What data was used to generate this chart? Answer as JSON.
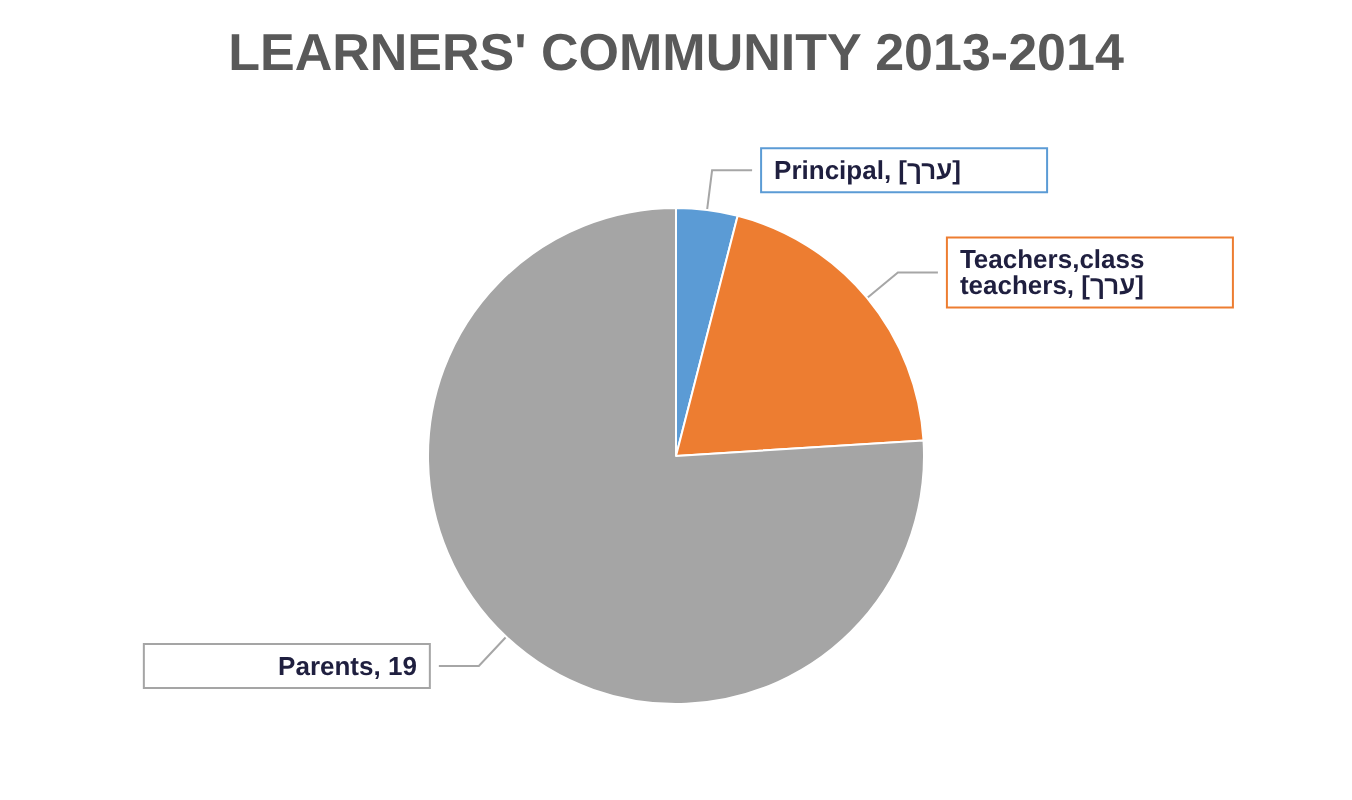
{
  "chart_data": {
    "type": "pie",
    "title": "LEARNERS' COMMUNITY 2013-2014",
    "categories": [
      "Principal",
      "Teachers,class teachers",
      "Parents"
    ],
    "values": [
      1,
      5,
      19
    ],
    "colors": [
      "#5b9bd5",
      "#ed7d31",
      "#a5a5a5"
    ],
    "value_labels": [
      "[ערך]",
      "[ערך]",
      "19"
    ],
    "legend": false
  }
}
